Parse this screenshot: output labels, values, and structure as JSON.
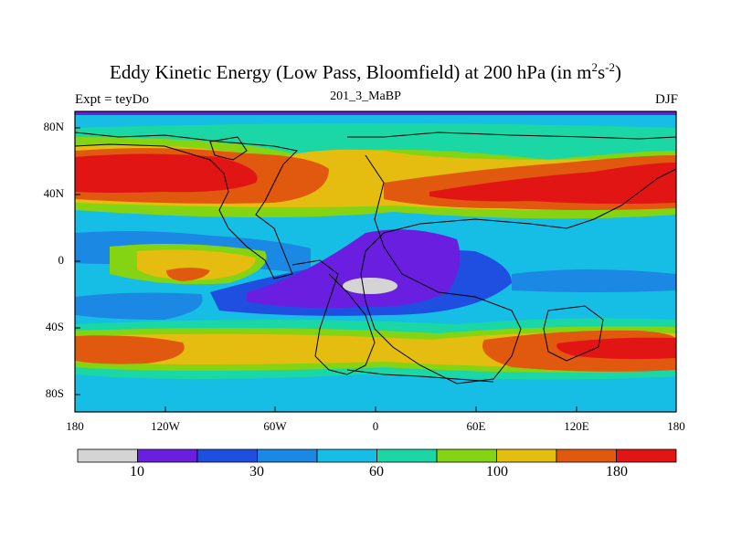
{
  "title": {
    "main": "Eddy Kinetic Energy (Low Pass, Bloomfield) at 200 hPa (in m",
    "sup1": "2",
    "mid": "s",
    "sup2": "-2",
    "end": ")"
  },
  "subtitle": "201_3_MaBP",
  "left_label": "Expt = teyDo",
  "right_label": "DJF",
  "lat_ticks": [
    "80N",
    "40N",
    "0",
    "40S",
    "80S"
  ],
  "lon_ticks": [
    "180",
    "120W",
    "60W",
    "0",
    "60E",
    "120E",
    "180"
  ],
  "colorbar": {
    "colors": [
      "#d4d4d4",
      "#6a1ee0",
      "#1f4fe0",
      "#1b88e3",
      "#16bde4",
      "#1ad7a5",
      "#84d414",
      "#e4bd10",
      "#e0590e",
      "#e21515"
    ],
    "labels": [
      "10",
      "30",
      "60",
      "100",
      "180"
    ]
  },
  "chart_data": {
    "type": "heatmap",
    "title": "Eddy Kinetic Energy (Low Pass, Bloomfield) at 200 hPa (in m2s-2)",
    "subtitle": "201_3_MaBP",
    "left_label": "Expt = teyDo",
    "right_label": "DJF",
    "xlim": [
      -180,
      180
    ],
    "ylim": [
      -90,
      90
    ],
    "x_ticks": [
      "180",
      "120W",
      "60W",
      "0",
      "60E",
      "120E",
      "180"
    ],
    "y_ticks": [
      "80N",
      "40N",
      "0",
      "40S",
      "80S"
    ],
    "colorbar_labels": [
      "10",
      "30",
      "60",
      "100",
      "180"
    ],
    "features": [
      {
        "region": "NH midlatitude jet (Pacific/west)",
        "lon": [
          -180,
          -90
        ],
        "lat": [
          35,
          55
        ],
        "level": "180+"
      },
      {
        "region": "NH midlatitude jet (Asia/east)",
        "lon": [
          60,
          180
        ],
        "lat": [
          30,
          50
        ],
        "level": "180+"
      },
      {
        "region": "SH jet",
        "lon": [
          100,
          170
        ],
        "lat": [
          -60,
          -40
        ],
        "level": "180+"
      },
      {
        "region": "tropical minimum",
        "lon": [
          -50,
          40
        ],
        "lat": [
          -25,
          0
        ],
        "level": "10-30"
      },
      {
        "region": "tropical core minimum",
        "lon": [
          -15,
          5
        ],
        "lat": [
          -20,
          -12
        ],
        "level": "<10"
      }
    ]
  }
}
